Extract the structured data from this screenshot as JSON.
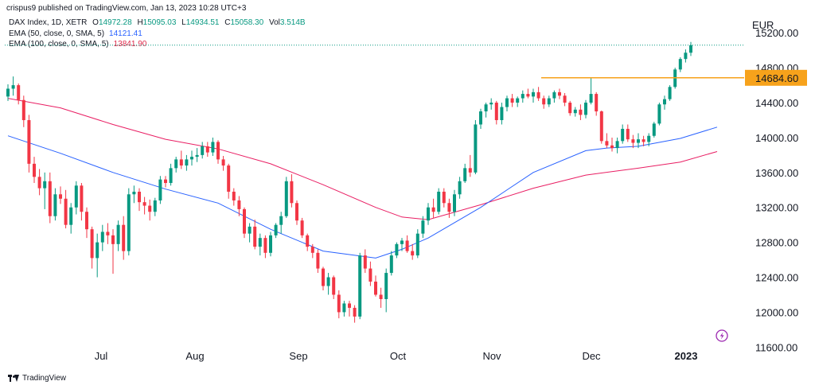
{
  "header": {
    "published_by": "crispus9 published on TradingView.com, Jan 13, 2023 10:28 UTC+3"
  },
  "legend": {
    "symbol": "DAX Index, 1D, XETR",
    "ohlc": {
      "o_label": "O",
      "o": "14972.28",
      "h_label": "H",
      "h": "15095.03",
      "l_label": "L",
      "l": "14934.51",
      "c_label": "C",
      "c": "15058.30",
      "vol_label": "Vol",
      "vol": "3.514B"
    },
    "ema50_label": "EMA (50, close, 0, SMA, 5)",
    "ema50_value": "14121.41",
    "ema100_label": "EMA (100, close, 0, SMA, 5)",
    "ema100_value": "13841.90"
  },
  "currency": "EUR",
  "footer": {
    "brand": "TradingView"
  },
  "colors": {
    "up": "#089981",
    "down": "#f23645",
    "ema50": "#2962ff",
    "ema100": "#e91e63",
    "level": "#f7a21b",
    "axis_text": "#131722"
  },
  "chart_data": {
    "type": "candlestick",
    "x_labels": [
      "Jul",
      "Aug",
      "Sep",
      "Oct",
      "Nov",
      "Dec",
      "2023"
    ],
    "y_ticks": [
      11600,
      12000,
      12400,
      12800,
      13200,
      13600,
      14000,
      14400,
      14800,
      15200
    ],
    "y_tick_labels": [
      "11600.00",
      "12000.00",
      "12400.00",
      "12800.00",
      "13200.00",
      "13600.00",
      "14000.00",
      "14400.00",
      "14800.00",
      "15200.00"
    ],
    "ylim": [
      11430,
      15430
    ],
    "price_level": {
      "value": 14684.6,
      "label": "14684.60"
    },
    "current_price": 15058.3,
    "candles": [
      [
        14470,
        14610,
        14420,
        14560
      ],
      [
        14560,
        14700,
        14480,
        14600
      ],
      [
        14600,
        14620,
        14380,
        14430
      ],
      [
        14430,
        14480,
        14120,
        14200
      ],
      [
        14200,
        14260,
        13600,
        13700
      ],
      [
        13700,
        13780,
        13480,
        13550
      ],
      [
        13550,
        13640,
        13340,
        13420
      ],
      [
        13420,
        13600,
        13180,
        13500
      ],
      [
        13500,
        13600,
        13020,
        13100
      ],
      [
        13100,
        13420,
        13050,
        13350
      ],
      [
        13350,
        13440,
        13240,
        13300
      ],
      [
        13300,
        13400,
        12960,
        13000
      ],
      [
        13000,
        13250,
        12900,
        13200
      ],
      [
        13200,
        13500,
        13120,
        13450
      ],
      [
        13450,
        13480,
        13050,
        13150
      ],
      [
        13150,
        13200,
        12850,
        12950
      ],
      [
        12950,
        12980,
        12500,
        12620
      ],
      [
        12620,
        12900,
        12400,
        12800
      ],
      [
        12800,
        13000,
        12700,
        12920
      ],
      [
        12920,
        13020,
        12780,
        12880
      ],
      [
        12880,
        12950,
        12440,
        12780
      ],
      [
        12780,
        13050,
        12700,
        13000
      ],
      [
        13000,
        13100,
        12600,
        12700
      ],
      [
        12700,
        13420,
        12650,
        13350
      ],
      [
        13350,
        13450,
        13250,
        13380
      ],
      [
        13380,
        13420,
        13160,
        13260
      ],
      [
        13260,
        13320,
        13120,
        13220
      ],
      [
        13220,
        13290,
        13050,
        13150
      ],
      [
        13150,
        13310,
        13100,
        13280
      ],
      [
        13280,
        13560,
        13240,
        13520
      ],
      [
        13520,
        13560,
        13430,
        13480
      ],
      [
        13480,
        13700,
        13450,
        13650
      ],
      [
        13650,
        13780,
        13600,
        13750
      ],
      [
        13750,
        13850,
        13640,
        13680
      ],
      [
        13680,
        13800,
        13620,
        13750
      ],
      [
        13750,
        13850,
        13680,
        13780
      ],
      [
        13780,
        13880,
        13720,
        13800
      ],
      [
        13800,
        13950,
        13760,
        13900
      ],
      [
        13900,
        13950,
        13780,
        13830
      ],
      [
        13830,
        14000,
        13790,
        13950
      ],
      [
        13950,
        13970,
        13700,
        13750
      ],
      [
        13750,
        13790,
        13620,
        13680
      ],
      [
        13680,
        13700,
        13300,
        13380
      ],
      [
        13380,
        13420,
        13220,
        13280
      ],
      [
        13280,
        13330,
        13100,
        13180
      ],
      [
        13180,
        13200,
        12850,
        12900
      ],
      [
        12900,
        13020,
        12800,
        12980
      ],
      [
        12980,
        13060,
        12720,
        12750
      ],
      [
        12750,
        12900,
        12650,
        12850
      ],
      [
        12850,
        12880,
        12620,
        12680
      ],
      [
        12680,
        12920,
        12640,
        12880
      ],
      [
        12880,
        13020,
        12850,
        13000
      ],
      [
        13000,
        13150,
        12900,
        13100
      ],
      [
        13100,
        13550,
        13080,
        13500
      ],
      [
        13500,
        13580,
        13200,
        13250
      ],
      [
        13250,
        13280,
        13000,
        13050
      ],
      [
        13050,
        13080,
        12850,
        12880
      ],
      [
        12880,
        12900,
        12700,
        12750
      ],
      [
        12750,
        12780,
        12620,
        12680
      ],
      [
        12680,
        12720,
        12450,
        12500
      ],
      [
        12500,
        12520,
        12250,
        12300
      ],
      [
        12300,
        12450,
        12200,
        12400
      ],
      [
        12400,
        12420,
        12150,
        12200
      ],
      [
        12200,
        12250,
        11930,
        12000
      ],
      [
        12000,
        12130,
        11950,
        12100
      ],
      [
        12100,
        12130,
        11950,
        12050
      ],
      [
        12050,
        12080,
        11880,
        11950
      ],
      [
        11950,
        12680,
        11920,
        12650
      ],
      [
        12650,
        12720,
        12450,
        12500
      ],
      [
        12500,
        12580,
        12300,
        12350
      ],
      [
        12350,
        12420,
        12180,
        12200
      ],
      [
        12200,
        12280,
        12050,
        12150
      ],
      [
        12150,
        12500,
        12000,
        12450
      ],
      [
        12450,
        12700,
        12420,
        12650
      ],
      [
        12650,
        12800,
        12620,
        12780
      ],
      [
        12780,
        12850,
        12700,
        12820
      ],
      [
        12820,
        12880,
        12680,
        12700
      ],
      [
        12700,
        12780,
        12600,
        12650
      ],
      [
        12650,
        12950,
        12620,
        12900
      ],
      [
        12900,
        13100,
        12850,
        13050
      ],
      [
        13050,
        13250,
        13000,
        13200
      ],
      [
        13200,
        13300,
        13080,
        13150
      ],
      [
        13150,
        13420,
        13120,
        13380
      ],
      [
        13380,
        13420,
        13200,
        13250
      ],
      [
        13250,
        13300,
        13080,
        13150
      ],
      [
        13150,
        13400,
        13100,
        13350
      ],
      [
        13350,
        13550,
        13300,
        13500
      ],
      [
        13500,
        13700,
        13480,
        13650
      ],
      [
        13650,
        13800,
        13550,
        13600
      ],
      [
        13600,
        14200,
        13580,
        14150
      ],
      [
        14150,
        14330,
        14100,
        14300
      ],
      [
        14300,
        14400,
        14230,
        14380
      ],
      [
        14380,
        14450,
        14320,
        14400
      ],
      [
        14400,
        14420,
        14150,
        14200
      ],
      [
        14200,
        14400,
        14150,
        14350
      ],
      [
        14350,
        14480,
        14300,
        14450
      ],
      [
        14450,
        14500,
        14350,
        14400
      ],
      [
        14400,
        14470,
        14350,
        14450
      ],
      [
        14450,
        14540,
        14400,
        14500
      ],
      [
        14500,
        14560,
        14450,
        14470
      ],
      [
        14470,
        14560,
        14400,
        14520
      ],
      [
        14520,
        14580,
        14420,
        14450
      ],
      [
        14450,
        14480,
        14330,
        14380
      ],
      [
        14380,
        14480,
        14350,
        14450
      ],
      [
        14450,
        14540,
        14400,
        14520
      ],
      [
        14520,
        14560,
        14440,
        14480
      ],
      [
        14480,
        14510,
        14360,
        14400
      ],
      [
        14400,
        14420,
        14250,
        14280
      ],
      [
        14280,
        14350,
        14240,
        14320
      ],
      [
        14320,
        14380,
        14200,
        14260
      ],
      [
        14260,
        14430,
        14220,
        14400
      ],
      [
        14400,
        14690,
        14380,
        14500
      ],
      [
        14500,
        14520,
        14250,
        14300
      ],
      [
        14300,
        14310,
        13930,
        13960
      ],
      [
        13960,
        14050,
        13880,
        13910
      ],
      [
        13910,
        14000,
        13840,
        13880
      ],
      [
        13880,
        14000,
        13820,
        13960
      ],
      [
        13960,
        14150,
        13930,
        14100
      ],
      [
        14100,
        14150,
        13950,
        13980
      ],
      [
        13980,
        14030,
        13880,
        13940
      ],
      [
        13940,
        14050,
        13880,
        13980
      ],
      [
        13980,
        14020,
        13900,
        13950
      ],
      [
        13950,
        14050,
        13900,
        14020
      ],
      [
        14020,
        14180,
        14000,
        14160
      ],
      [
        14160,
        14400,
        14140,
        14380
      ],
      [
        14380,
        14480,
        14320,
        14440
      ],
      [
        14440,
        14600,
        14420,
        14580
      ],
      [
        14580,
        14800,
        14560,
        14780
      ],
      [
        14780,
        14920,
        14750,
        14900
      ],
      [
        14900,
        15010,
        14860,
        14972
      ],
      [
        14972,
        15095,
        14934,
        15058
      ]
    ],
    "ema50": [
      [
        0,
        14020
      ],
      [
        10,
        13820
      ],
      [
        20,
        13600
      ],
      [
        30,
        13410
      ],
      [
        40,
        13250
      ],
      [
        50,
        12950
      ],
      [
        60,
        12700
      ],
      [
        70,
        12620
      ],
      [
        75,
        12720
      ],
      [
        80,
        12850
      ],
      [
        90,
        13200
      ],
      [
        100,
        13600
      ],
      [
        110,
        13850
      ],
      [
        114,
        13880
      ],
      [
        120,
        13900
      ],
      [
        128,
        13990
      ],
      [
        135,
        14120
      ]
    ],
    "ema100": [
      [
        0,
        14450
      ],
      [
        10,
        14340
      ],
      [
        20,
        14150
      ],
      [
        30,
        13980
      ],
      [
        40,
        13870
      ],
      [
        50,
        13700
      ],
      [
        60,
        13460
      ],
      [
        70,
        13200
      ],
      [
        75,
        13090
      ],
      [
        80,
        13060
      ],
      [
        90,
        13230
      ],
      [
        100,
        13420
      ],
      [
        110,
        13570
      ],
      [
        120,
        13650
      ],
      [
        128,
        13720
      ],
      [
        135,
        13840
      ]
    ]
  }
}
